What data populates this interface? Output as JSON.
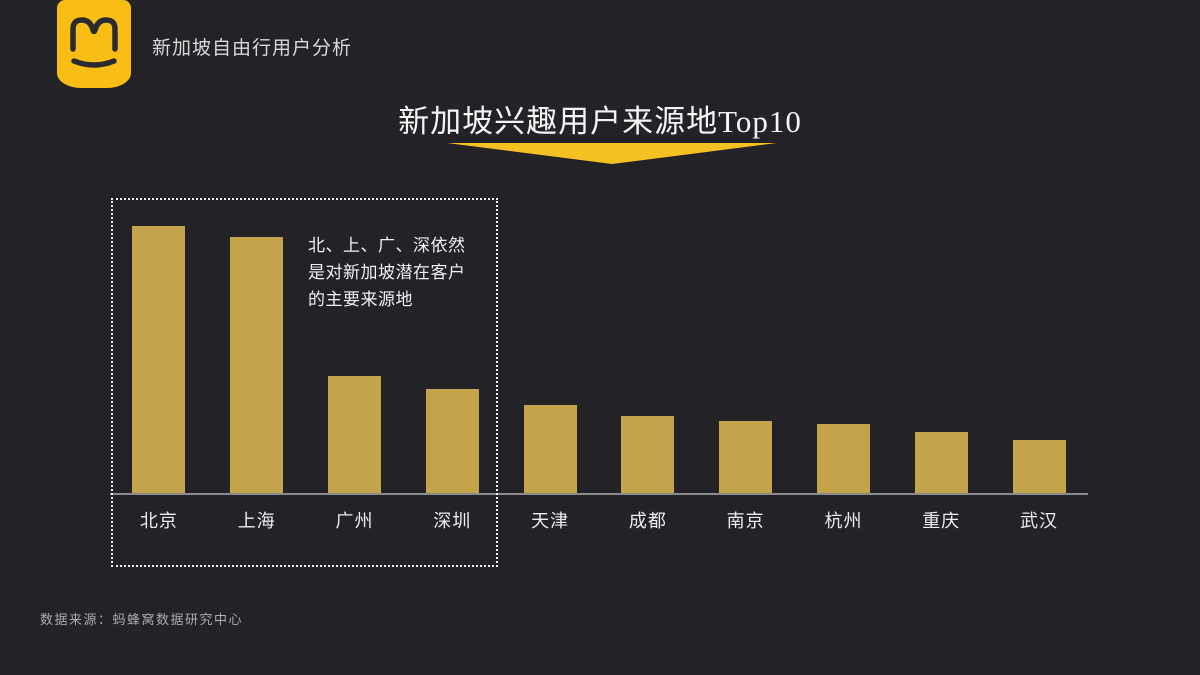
{
  "slide": {
    "background_color": "#222227",
    "accent_color": "#F5C021",
    "logo_color": "#F9BE15",
    "logo_mark_color": "#2B2A2F",
    "header": {
      "title": "新加坡自由行用户分析"
    },
    "main_title": "新加坡兴趣用户来源地Top10",
    "annotation": "北、上、广、深依然\n是对新加坡潜在客户\n的主要来源地",
    "footer": "数据来源：蚂蜂窝数据研究中心"
  },
  "chart_data": {
    "type": "bar",
    "title": "新加坡兴趣用户来源地Top10",
    "categories": [
      "北京",
      "上海",
      "广州",
      "深圳",
      "天津",
      "成都",
      "南京",
      "杭州",
      "重庆",
      "武汉"
    ],
    "values_relative": [
      100,
      96,
      44,
      39,
      33,
      29,
      27,
      26,
      23,
      20
    ],
    "value_axis_shown": false,
    "value_labels_shown": false,
    "xlabel": "",
    "ylabel": "",
    "grid": false,
    "legend": "none",
    "bar_color": "#C4A44A",
    "axis_color": "#8B8B8E",
    "highlight_group": {
      "categories": [
        "北京",
        "上海",
        "广州",
        "深圳"
      ],
      "style": "dotted-outline",
      "note": "北、上、广、深依然是对新加坡潜在客户的主要来源地"
    }
  }
}
